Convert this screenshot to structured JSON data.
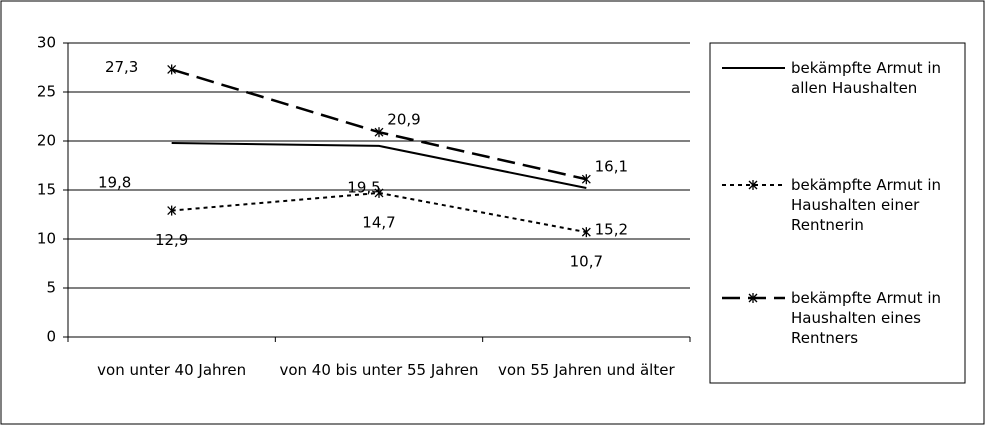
{
  "chart_data": {
    "type": "line",
    "categories": [
      "von unter 40 Jahren",
      "von 40 bis unter 55 Jahren",
      "von 55 Jahren und älter"
    ],
    "ylim": [
      0,
      30
    ],
    "yticks": [
      0,
      5,
      10,
      15,
      20,
      25,
      30
    ],
    "grid": true,
    "legend": "right",
    "series": [
      {
        "name": "bekämpfte Armut in allen Haushalten",
        "color": "#000000",
        "line_style": "solid",
        "marker": null,
        "values": [
          19.8,
          19.5,
          15.2
        ],
        "value_labels": [
          "19,8",
          "19,5",
          "15,2"
        ]
      },
      {
        "name": "bekämpfte Armut in Haushalten einer Rentnerin",
        "color": "#000000",
        "line_style": "dotted",
        "marker": "asterisk",
        "values": [
          12.9,
          14.7,
          10.7
        ],
        "value_labels": [
          "12,9",
          "14,7",
          "10,7"
        ]
      },
      {
        "name": "bekämpfte Armut in Haushalten eines Rentners",
        "color": "#000000",
        "line_style": "dashed",
        "marker": "asterisk",
        "values": [
          27.3,
          20.9,
          16.1
        ],
        "value_labels": [
          "27,3",
          "20,9",
          "16,1"
        ]
      }
    ]
  }
}
